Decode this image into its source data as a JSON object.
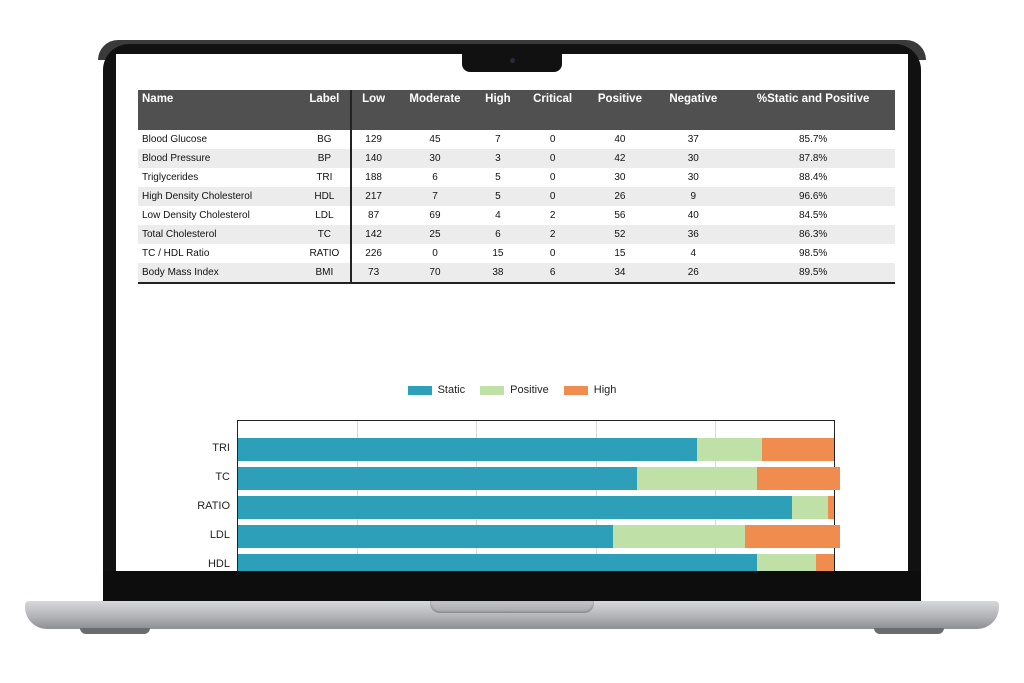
{
  "table": {
    "headers": [
      "Name",
      "Label",
      "Low",
      "Moderate",
      "High",
      "Critical",
      "Positive",
      "Negative",
      "%Static and Positive"
    ],
    "rows": [
      [
        "Blood Glucose",
        "BG",
        "129",
        "45",
        "7",
        "0",
        "40",
        "37",
        "85.7%"
      ],
      [
        "Blood Pressure",
        "BP",
        "140",
        "30",
        "3",
        "0",
        "42",
        "30",
        "87.8%"
      ],
      [
        "Triglycerides",
        "TRI",
        "188",
        "6",
        "5",
        "0",
        "30",
        "30",
        "88.4%"
      ],
      [
        "High Density Cholesterol",
        "HDL",
        "217",
        "7",
        "5",
        "0",
        "26",
        "9",
        "96.6%"
      ],
      [
        "Low Density Cholesterol",
        "LDL",
        "87",
        "69",
        "4",
        "2",
        "56",
        "40",
        "84.5%"
      ],
      [
        "Total Cholesterol",
        "TC",
        "142",
        "25",
        "6",
        "2",
        "52",
        "36",
        "86.3%"
      ],
      [
        "TC / HDL Ratio",
        "RATIO",
        "226",
        "0",
        "15",
        "0",
        "15",
        "4",
        "98.5%"
      ],
      [
        "Body Mass Index",
        "BMI",
        "73",
        "70",
        "38",
        "6",
        "34",
        "26",
        "89.5%"
      ]
    ]
  },
  "chart_data": {
    "type": "bar",
    "orientation": "horizontal",
    "stacked": true,
    "normalized": true,
    "legend_placement": "top",
    "categories": [
      "TRI",
      "TC",
      "RATIO",
      "LDL",
      "HDL"
    ],
    "series": [
      {
        "name": "Static",
        "color": "#2e9fb9",
        "values": [
          0.77,
          0.67,
          0.93,
          0.63,
          0.87
        ]
      },
      {
        "name": "Positive",
        "color": "#bfe0a6",
        "values": [
          0.11,
          0.2,
          0.06,
          0.22,
          0.1
        ]
      },
      {
        "name": "High",
        "color": "#f08c4e",
        "values": [
          0.12,
          0.14,
          0.01,
          0.16,
          0.03
        ]
      }
    ],
    "xlim": [
      0,
      1
    ],
    "grid": true
  }
}
